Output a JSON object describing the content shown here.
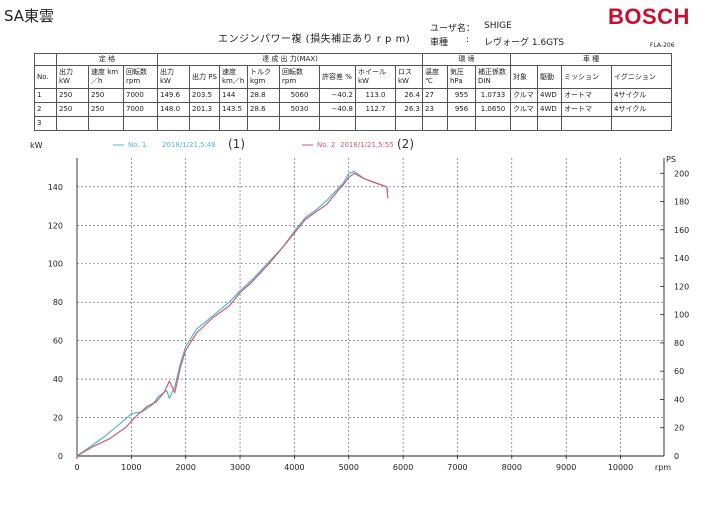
{
  "header": {
    "company": "SA東雲",
    "doc_title": "エンジンパワー複 (損失補正あり r p m)",
    "user_label": "ユーザ名：",
    "user_value": "SHIGE",
    "car_label": "車種",
    "car_colon": ":",
    "car_value": "レヴォーグ 1.6GTS",
    "logo": "BOSCH",
    "form_code": "FLA-206"
  },
  "table": {
    "groups": [
      "定 格",
      "達 成 出 力(MAX)",
      "環 境",
      "車 種"
    ],
    "headers": [
      "No.",
      "出力 kW",
      "速度 km／h",
      "回転数 rpm",
      "出力 kW",
      "出力 PS",
      "速度 km／h",
      "トルク kgm",
      "回転数 rpm",
      "許容差 %",
      "ホイール kW",
      "ロス kW",
      "温度 ℃",
      "気圧 hPa",
      "補正係数 DIN",
      "対象",
      "駆動",
      "ミッション",
      "イグニション"
    ],
    "rows": [
      [
        "1",
        "250",
        "250",
        "7000",
        "149.6",
        "203.5",
        "144",
        "28.8",
        "5060",
        "−40.2",
        "113.0",
        "26.4",
        "27",
        "955",
        "1.0733",
        "クルマ",
        "4WD",
        "オートマ",
        "4サイクル"
      ],
      [
        "2",
        "250",
        "250",
        "7000",
        "148.0",
        "201.3",
        "143.5",
        "28.6",
        "5030",
        "−40.8",
        "112.7",
        "26.3",
        "23",
        "956",
        "1.0650",
        "クルマ",
        "4WD",
        "オートマ",
        "4サイクル"
      ],
      [
        "3",
        "",
        "",
        "",
        "",
        "",
        "",
        "",
        "",
        "",
        "",
        "",
        "",
        "",
        "",
        "",
        "",
        "",
        ""
      ]
    ]
  },
  "chart_data": {
    "type": "line",
    "y_left_label": "kW",
    "y_right_label": "PS",
    "x_unit_label": "rpm",
    "x_ticks": [
      0,
      1000,
      2000,
      3000,
      4000,
      5000,
      6000,
      7000,
      8000,
      9000,
      10000
    ],
    "y_left_ticks": [
      0,
      20,
      40,
      60,
      80,
      100,
      120,
      140
    ],
    "y_right_ticks": [
      0,
      20,
      40,
      60,
      80,
      100,
      120,
      140,
      160,
      180,
      200
    ],
    "xlim": [
      0,
      10800
    ],
    "ylim_left": [
      0,
      155
    ],
    "grid": true,
    "legend": [
      {
        "label": "No. 1",
        "date": "2018/1/21,5:48",
        "note": "(1)",
        "color": "#4fb6d8"
      },
      {
        "label": "No. 2",
        "date": "2018/1/21,5:55",
        "note": "(2)",
        "color": "#d45b6a"
      }
    ],
    "series": [
      {
        "name": "No. 1",
        "color": "#4fb6d8",
        "x": [
          0,
          300,
          500,
          800,
          1000,
          1200,
          1400,
          1500,
          1650,
          1700,
          1800,
          1900,
          2000,
          2200,
          2500,
          2800,
          3000,
          3200,
          3500,
          3800,
          4000,
          4200,
          4400,
          4600,
          4800,
          4900,
          5000,
          5100,
          5300,
          5500,
          5700,
          5720
        ],
        "y": [
          0,
          6,
          10,
          17,
          22,
          23,
          27,
          31,
          34,
          30,
          36,
          48,
          57,
          66,
          73,
          80,
          86,
          91,
          100,
          109,
          117,
          124,
          128,
          133,
          139,
          142,
          147,
          148,
          144,
          142,
          140,
          137
        ]
      },
      {
        "name": "No. 2",
        "color": "#d45b6a",
        "x": [
          0,
          300,
          600,
          900,
          1100,
          1300,
          1450,
          1600,
          1700,
          1800,
          1900,
          2000,
          2200,
          2500,
          2800,
          3000,
          3200,
          3500,
          3800,
          4000,
          4200,
          4400,
          4600,
          4800,
          4900,
          5000,
          5100,
          5300,
          5500,
          5700,
          5720
        ],
        "y": [
          0,
          5,
          9,
          15,
          21,
          26,
          28,
          33,
          39,
          33,
          46,
          55,
          64,
          72,
          78,
          85,
          90,
          99,
          109,
          116,
          123,
          127,
          131,
          138,
          141,
          145,
          147,
          144,
          142,
          140,
          134
        ]
      }
    ]
  }
}
